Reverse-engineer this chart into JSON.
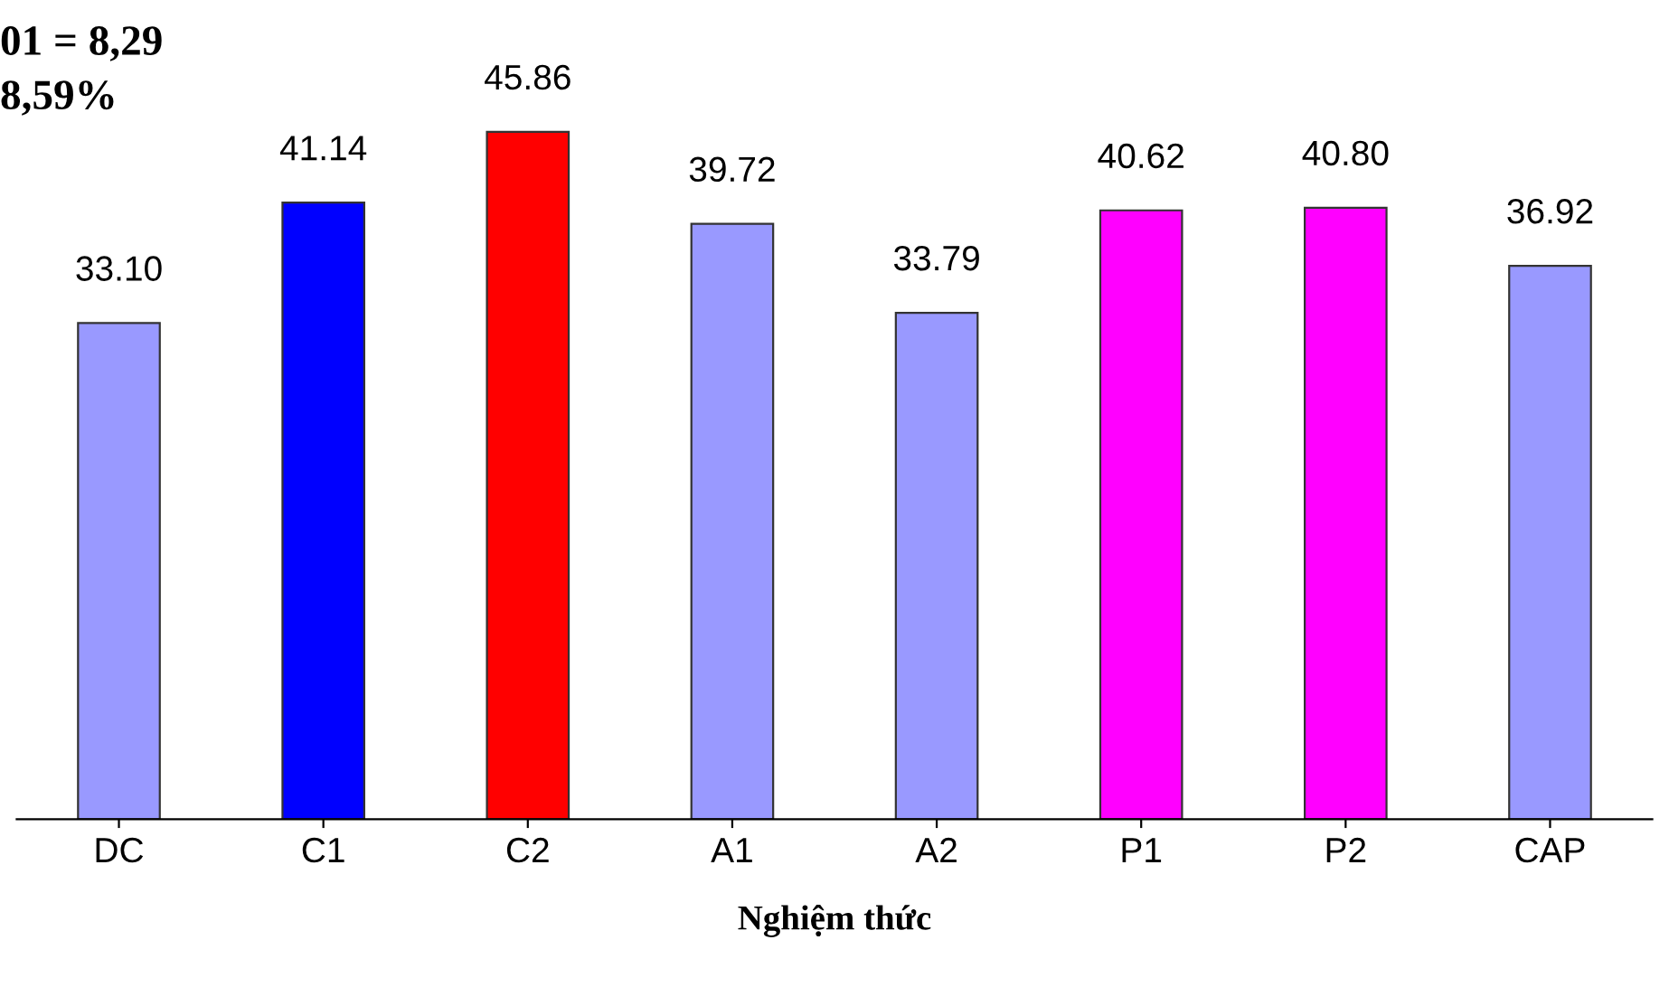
{
  "chart_data": {
    "type": "bar",
    "xlabel": "Nghiệm thức",
    "categories": [
      "DC",
      "C1",
      "C2",
      "A1",
      "A2",
      "P1",
      "P2",
      "CAP"
    ],
    "values": [
      33.1,
      41.14,
      45.86,
      39.72,
      33.79,
      40.62,
      40.8,
      36.92
    ],
    "value_labels": [
      "33.10",
      "41.14",
      "45.86",
      "39.72",
      "33.79",
      "40.62",
      "40.80",
      "36.92"
    ],
    "colors": [
      "#9999ff",
      "#0000ff",
      "#ff0000",
      "#9999ff",
      "#9999ff",
      "#ff00ff",
      "#ff00ff",
      "#9999ff"
    ],
    "annotations": [
      "01 = 8,29",
      "8,59%"
    ],
    "grid": false,
    "legend": false
  }
}
